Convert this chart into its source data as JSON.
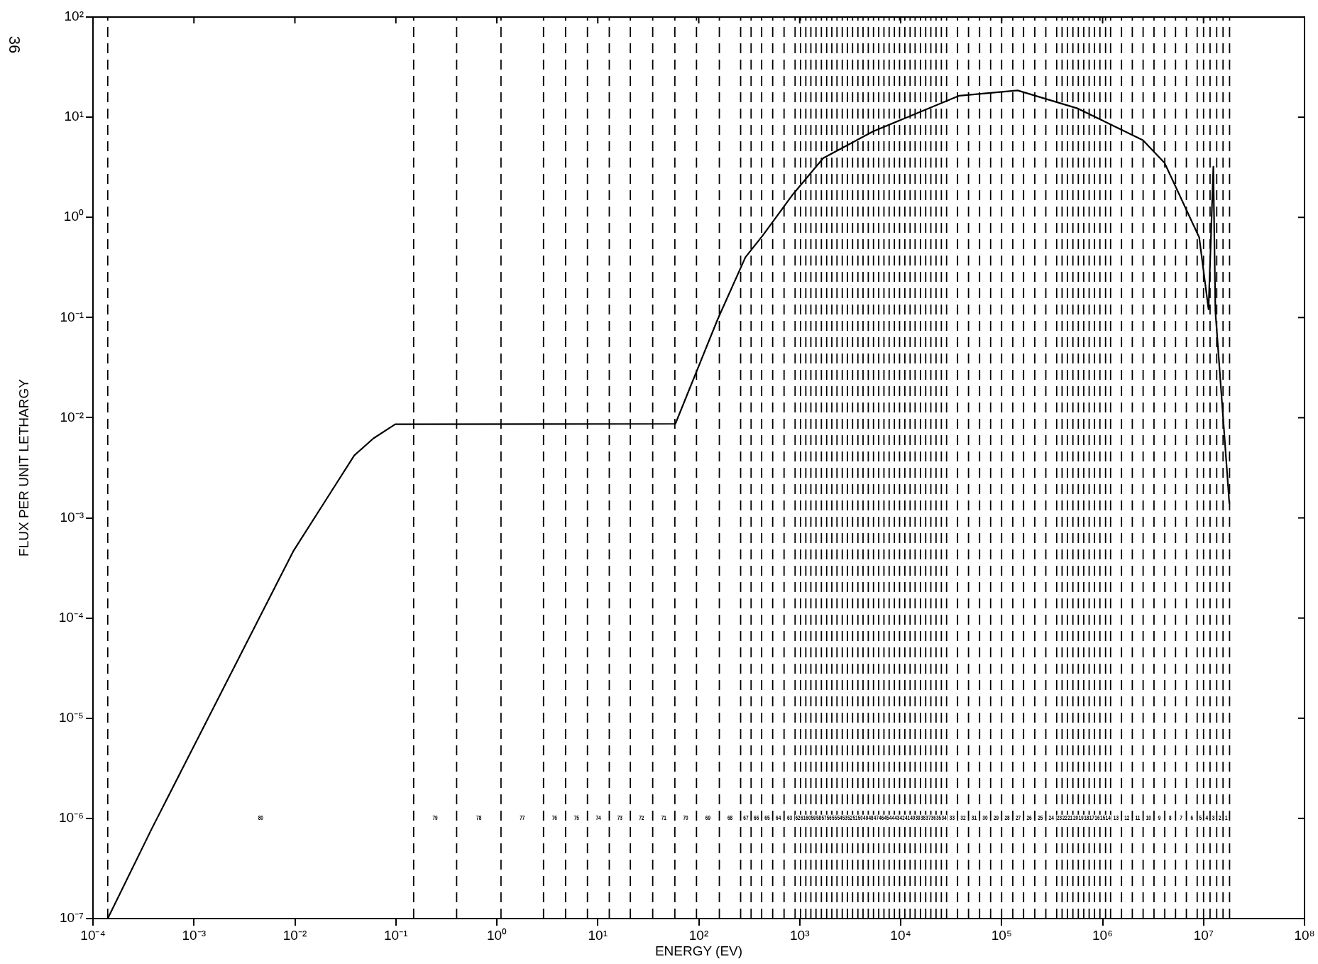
{
  "chart_data": {
    "type": "line",
    "xlabel": "ENERGY (EV)",
    "ylabel": "FLUX PER UNIT LETHARGY",
    "log": "xy",
    "grid": false,
    "legend": false,
    "marker": "none",
    "line_style": "solid",
    "xlim": [
      0.0001,
      100000000.0
    ],
    "ylim": [
      1e-07,
      100.0
    ],
    "xticks": [
      {
        "value": 0.0001,
        "label": "10⁻⁴"
      },
      {
        "value": 0.001,
        "label": "10⁻³"
      },
      {
        "value": 0.01,
        "label": "10⁻²"
      },
      {
        "value": 0.1,
        "label": "10⁻¹"
      },
      {
        "value": 1,
        "label": "10⁰"
      },
      {
        "value": 10,
        "label": "10¹"
      },
      {
        "value": 100,
        "label": "10²"
      },
      {
        "value": 1000,
        "label": "10³"
      },
      {
        "value": 10000.0,
        "label": "10⁴"
      },
      {
        "value": 100000.0,
        "label": "10⁵"
      },
      {
        "value": 1000000.0,
        "label": "10⁶"
      },
      {
        "value": 10000000.0,
        "label": "10⁷"
      },
      {
        "value": 100000000.0,
        "label": "10⁸"
      }
    ],
    "yticks": [
      {
        "value": 1e-07,
        "label": "10⁻⁷"
      },
      {
        "value": 1e-06,
        "label": "10⁻⁶"
      },
      {
        "value": 1e-05,
        "label": "10⁻⁵"
      },
      {
        "value": 0.0001,
        "label": "10⁻⁴"
      },
      {
        "value": 0.001,
        "label": "10⁻³"
      },
      {
        "value": 0.01,
        "label": "10⁻²"
      },
      {
        "value": 0.1,
        "label": "10⁻¹"
      },
      {
        "value": 1,
        "label": "10⁰"
      },
      {
        "value": 10,
        "label": "10¹"
      },
      {
        "value": 100,
        "label": "10²"
      }
    ],
    "series": [
      {
        "color": "#000000",
        "x": [
          0.00014,
          0.00038,
          0.0097,
          0.0217,
          0.0387,
          0.0597,
          0.0986,
          58.7,
          153,
          290,
          431,
          857,
          1710,
          5310,
          38100,
          144000.0,
          570000.0,
          2510000.0,
          4110000.0,
          9060000.0,
          11200000.0,
          12500000.0,
          13100000.0,
          18000000.0
        ],
        "values": [
          1e-07,
          7.8e-07,
          0.00047,
          0.00168,
          0.0042,
          0.0062,
          0.0086,
          0.0087,
          0.0946,
          0.4,
          0.66,
          1.7,
          3.9,
          7.2,
          16.4,
          18.5,
          12.2,
          5.9,
          3.5,
          0.63,
          0.121,
          3.2,
          0.115,
          0.0014
        ]
      }
    ],
    "ref_lines": [
      {
        "axis": "x",
        "value": 0.00014,
        "line_style": "dashed"
      },
      {
        "axis": "x",
        "value": 0.15,
        "line_style": "dashed"
      },
      {
        "axis": "x",
        "value": 0.4,
        "line_style": "dashed"
      },
      {
        "axis": "x",
        "value": 1.1,
        "line_style": "dashed"
      },
      {
        "axis": "x",
        "value": 2.9,
        "line_style": "dashed"
      },
      {
        "axis": "x",
        "value": 4.8,
        "line_style": "dashed"
      },
      {
        "axis": "x",
        "value": 7.9,
        "line_style": "dashed"
      },
      {
        "axis": "x",
        "value": 13,
        "line_style": "dashed"
      },
      {
        "axis": "x",
        "value": 21,
        "line_style": "dashed"
      },
      {
        "axis": "x",
        "value": 35,
        "line_style": "dashed"
      },
      {
        "axis": "x",
        "value": 58,
        "line_style": "dashed"
      },
      {
        "axis": "x",
        "value": 95,
        "line_style": "dashed"
      },
      {
        "axis": "x",
        "value": 160,
        "line_style": "dashed"
      },
      {
        "axis": "x",
        "value": 260,
        "line_style": "dashed"
      },
      {
        "axis": "x",
        "value": 330,
        "line_style": "dashed"
      },
      {
        "axis": "x",
        "value": 420,
        "line_style": "dashed"
      },
      {
        "axis": "x",
        "value": 540,
        "line_style": "dashed"
      },
      {
        "axis": "x",
        "value": 700,
        "line_style": "dashed"
      },
      {
        "axis": "x",
        "value": 900,
        "line_style": "dashed"
      },
      {
        "axis": "x",
        "value": 1020,
        "line_style": "dashed"
      },
      {
        "axis": "x",
        "value": 1150,
        "line_style": "dashed"
      },
      {
        "axis": "x",
        "value": 1290,
        "line_style": "dashed"
      },
      {
        "axis": "x",
        "value": 1450,
        "line_style": "dashed"
      },
      {
        "axis": "x",
        "value": 1640,
        "line_style": "dashed"
      },
      {
        "axis": "x",
        "value": 1850,
        "line_style": "dashed"
      },
      {
        "axis": "x",
        "value": 2080,
        "line_style": "dashed"
      },
      {
        "axis": "x",
        "value": 2340,
        "line_style": "dashed"
      },
      {
        "axis": "x",
        "value": 2640,
        "line_style": "dashed"
      },
      {
        "axis": "x",
        "value": 2970,
        "line_style": "dashed"
      },
      {
        "axis": "x",
        "value": 3340,
        "line_style": "dashed"
      },
      {
        "axis": "x",
        "value": 3770,
        "line_style": "dashed"
      },
      {
        "axis": "x",
        "value": 4240,
        "line_style": "dashed"
      },
      {
        "axis": "x",
        "value": 4780,
        "line_style": "dashed"
      },
      {
        "axis": "x",
        "value": 5380,
        "line_style": "dashed"
      },
      {
        "axis": "x",
        "value": 6060,
        "line_style": "dashed"
      },
      {
        "axis": "x",
        "value": 6830,
        "line_style": "dashed"
      },
      {
        "axis": "x",
        "value": 7690,
        "line_style": "dashed"
      },
      {
        "axis": "x",
        "value": 8660,
        "line_style": "dashed"
      },
      {
        "axis": "x",
        "value": 9750,
        "line_style": "dashed"
      },
      {
        "axis": "x",
        "value": 11000,
        "line_style": "dashed"
      },
      {
        "axis": "x",
        "value": 12400,
        "line_style": "dashed"
      },
      {
        "axis": "x",
        "value": 13900,
        "line_style": "dashed"
      },
      {
        "axis": "x",
        "value": 15700,
        "line_style": "dashed"
      },
      {
        "axis": "x",
        "value": 17700,
        "line_style": "dashed"
      },
      {
        "axis": "x",
        "value": 19900,
        "line_style": "dashed"
      },
      {
        "axis": "x",
        "value": 22400,
        "line_style": "dashed"
      },
      {
        "axis": "x",
        "value": 25300,
        "line_style": "dashed"
      },
      {
        "axis": "x",
        "value": 28500,
        "line_style": "dashed"
      },
      {
        "axis": "x",
        "value": 36600,
        "line_style": "dashed"
      },
      {
        "axis": "x",
        "value": 47000,
        "line_style": "dashed"
      },
      {
        "axis": "x",
        "value": 60500,
        "line_style": "dashed"
      },
      {
        "axis": "x",
        "value": 77800,
        "line_style": "dashed"
      },
      {
        "axis": "x",
        "value": 100000,
        "line_style": "dashed"
      },
      {
        "axis": "x",
        "value": 129000,
        "line_style": "dashed"
      },
      {
        "axis": "x",
        "value": 165000,
        "line_style": "dashed"
      },
      {
        "axis": "x",
        "value": 213000,
        "line_style": "dashed"
      },
      {
        "axis": "x",
        "value": 274000,
        "line_style": "dashed"
      },
      {
        "axis": "x",
        "value": 351000,
        "line_style": "dashed"
      },
      {
        "axis": "x",
        "value": 397000,
        "line_style": "dashed"
      },
      {
        "axis": "x",
        "value": 449000,
        "line_style": "dashed"
      },
      {
        "axis": "x",
        "value": 508000,
        "line_style": "dashed"
      },
      {
        "axis": "x",
        "value": 575000,
        "line_style": "dashed"
      },
      {
        "axis": "x",
        "value": 651000,
        "line_style": "dashed"
      },
      {
        "axis": "x",
        "value": 736000,
        "line_style": "dashed"
      },
      {
        "axis": "x",
        "value": 832000,
        "line_style": "dashed"
      },
      {
        "axis": "x",
        "value": 941000,
        "line_style": "dashed"
      },
      {
        "axis": "x",
        "value": 1070000.0,
        "line_style": "dashed"
      },
      {
        "axis": "x",
        "value": 1200000.0,
        "line_style": "dashed"
      },
      {
        "axis": "x",
        "value": 1540000.0,
        "line_style": "dashed"
      },
      {
        "axis": "x",
        "value": 1970000.0,
        "line_style": "dashed"
      },
      {
        "axis": "x",
        "value": 2520000.0,
        "line_style": "dashed"
      },
      {
        "axis": "x",
        "value": 3230000.0,
        "line_style": "dashed"
      },
      {
        "axis": "x",
        "value": 4130000.0,
        "line_style": "dashed"
      },
      {
        "axis": "x",
        "value": 5280000.0,
        "line_style": "dashed"
      },
      {
        "axis": "x",
        "value": 6760000.0,
        "line_style": "dashed"
      },
      {
        "axis": "x",
        "value": 8650000.0,
        "line_style": "dashed"
      },
      {
        "axis": "x",
        "value": 10000000.0,
        "line_style": "dashed"
      },
      {
        "axis": "x",
        "value": 11600000.0,
        "line_style": "dashed"
      },
      {
        "axis": "x",
        "value": 13500000.0,
        "line_style": "dashed"
      },
      {
        "axis": "x",
        "value": 15600000.0,
        "line_style": "dashed"
      },
      {
        "axis": "x",
        "value": 18100000.0,
        "line_style": "dashed"
      }
    ],
    "annotations": [
      "36",
      "80",
      "79",
      "78",
      "77",
      "76",
      "75",
      "74",
      "73",
      "72",
      "71",
      "70",
      "69",
      "68",
      "67",
      "66",
      "65",
      "64",
      "63",
      "62",
      "61",
      "60",
      "59",
      "58",
      "57",
      "56",
      "55",
      "54",
      "53",
      "52",
      "51",
      "50",
      "49",
      "48",
      "47",
      "46",
      "45",
      "44",
      "43",
      "42",
      "41",
      "40",
      "39",
      "38",
      "37",
      "36",
      "35",
      "34",
      "33",
      "32",
      "31",
      "30",
      "29",
      "28",
      "27",
      "26",
      "25",
      "24",
      "23",
      "22",
      "21",
      "20",
      "19",
      "18",
      "17",
      "16",
      "15",
      "14",
      "13",
      "12",
      "11",
      "10",
      "9",
      "8",
      "7",
      "6",
      "5",
      "4",
      "3",
      "2",
      "1"
    ]
  }
}
